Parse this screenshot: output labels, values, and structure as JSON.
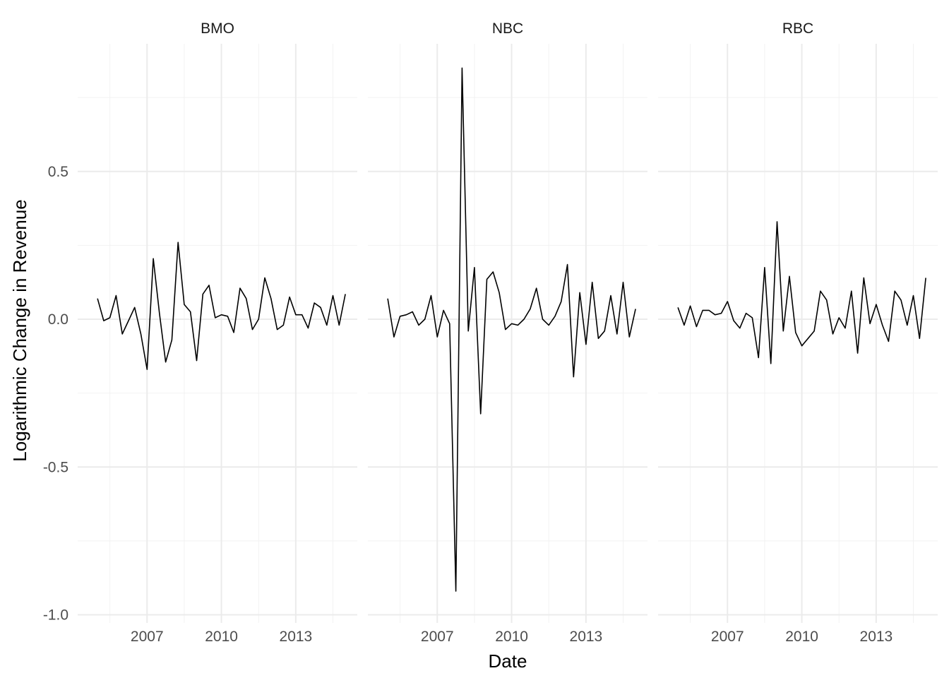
{
  "chart_data": {
    "type": "line",
    "title": "",
    "xlabel": "Date",
    "ylabel": "Logarithmic Change in Revenue",
    "x_start": 2005.0,
    "x_step": 0.25,
    "xlim": [
      2004.2,
      2015.45
    ],
    "ylim": [
      -1.0,
      0.9
    ],
    "x_ticks": [
      2007,
      2010,
      2013
    ],
    "x_tick_labels": [
      "2007",
      "2010",
      "2013"
    ],
    "y_ticks": [
      -1.0,
      -0.5,
      0.0,
      0.5
    ],
    "y_tick_labels": [
      "-1.0",
      "-0.5",
      "0.0",
      "0.5"
    ],
    "grid": true,
    "line_color": "#000000",
    "facets": [
      {
        "name": "BMO",
        "values": [
          0.07,
          -0.005,
          0.005,
          0.08,
          -0.05,
          -0.005,
          0.04,
          -0.05,
          -0.17,
          0.205,
          0.02,
          -0.145,
          -0.07,
          0.26,
          0.05,
          0.025,
          -0.14,
          0.085,
          0.115,
          0.005,
          0.015,
          0.01,
          -0.045,
          0.105,
          0.07,
          -0.035,
          0.0,
          0.14,
          0.07,
          -0.035,
          -0.02,
          0.075,
          0.015,
          0.015,
          -0.03,
          0.055,
          0.04,
          -0.02,
          0.08,
          -0.02,
          0.085
        ]
      },
      {
        "name": "NBC",
        "values": [
          0.07,
          -0.06,
          0.01,
          0.015,
          0.025,
          -0.02,
          0.0,
          0.08,
          -0.06,
          0.03,
          -0.015,
          -0.92,
          0.85,
          -0.04,
          0.175,
          -0.32,
          0.135,
          0.16,
          0.09,
          -0.035,
          -0.015,
          -0.02,
          0.0,
          0.035,
          0.105,
          0.0,
          -0.02,
          0.01,
          0.06,
          0.185,
          -0.195,
          0.09,
          -0.085,
          0.125,
          -0.065,
          -0.04,
          0.08,
          -0.05,
          0.125,
          -0.06,
          0.035
        ]
      },
      {
        "name": "RBC",
        "values": [
          0.04,
          -0.02,
          0.045,
          -0.025,
          0.03,
          0.03,
          0.015,
          0.02,
          0.06,
          -0.005,
          -0.03,
          0.02,
          0.005,
          -0.13,
          0.175,
          -0.15,
          0.33,
          -0.04,
          0.145,
          -0.045,
          -0.09,
          -0.065,
          -0.04,
          0.095,
          0.065,
          -0.05,
          0.005,
          -0.03,
          0.095,
          -0.115,
          0.14,
          -0.015,
          0.05,
          -0.02,
          -0.075,
          0.095,
          0.065,
          -0.02,
          0.08,
          -0.065,
          0.14
        ]
      }
    ]
  }
}
